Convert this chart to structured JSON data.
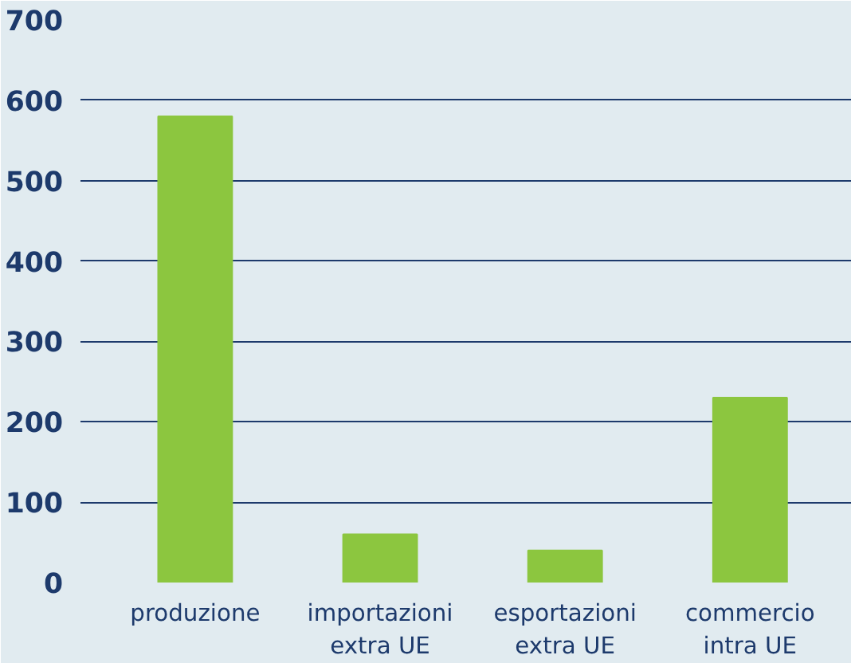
{
  "chart_data": {
    "type": "bar",
    "categories": [
      "produzione",
      "importazioni\nextra UE",
      "esportazioni\nextra UE",
      "commercio\nintra UE"
    ],
    "values": [
      580,
      60,
      40,
      230
    ],
    "color": "#8cc63f",
    "ylim": [
      0,
      700
    ],
    "yticks": [
      0,
      100,
      200,
      300,
      400,
      500,
      600,
      700
    ],
    "grid": "y"
  }
}
